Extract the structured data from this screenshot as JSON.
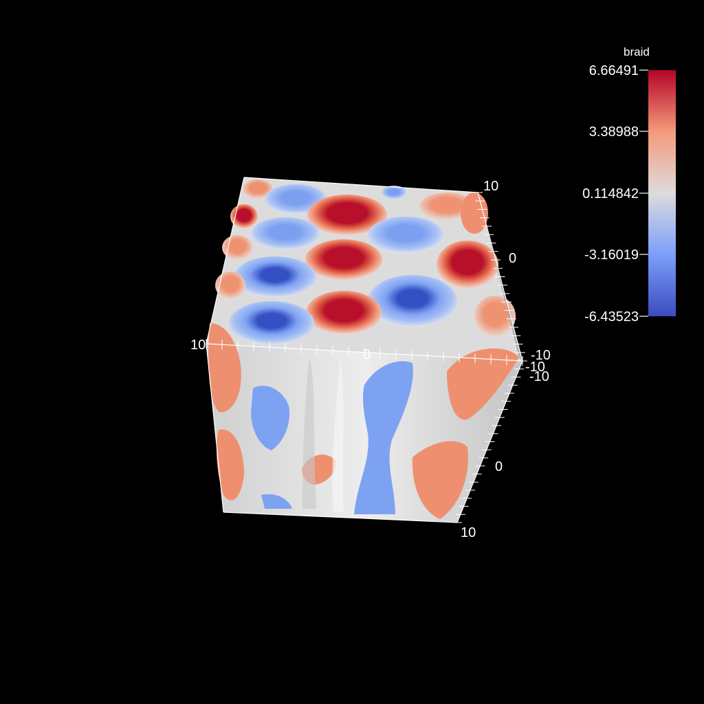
{
  "scalar_bar": {
    "title": "braid",
    "labels": [
      "6.66491",
      "3.38988",
      "0.114842",
      "-3.16019",
      "-6.43523"
    ],
    "colors": {
      "max": "#b40426",
      "high": "#f49a7b",
      "mid": "#dddcdc",
      "low": "#7b9ff9",
      "min": "#3b4cc0"
    }
  },
  "axes": {
    "x_labels": [
      "10",
      "0",
      "-10"
    ],
    "y_labels": [
      "10",
      "0",
      "-10"
    ],
    "z_labels": [
      "-10",
      "0",
      "10"
    ]
  },
  "surface_colors": {
    "grey": "#e4e4e4",
    "grey_shade": "#c8c8c8",
    "salmon": "#ee9070",
    "red": "#bb0e2a",
    "blue": "#7ea2f2",
    "deep_blue": "#3650c4"
  }
}
